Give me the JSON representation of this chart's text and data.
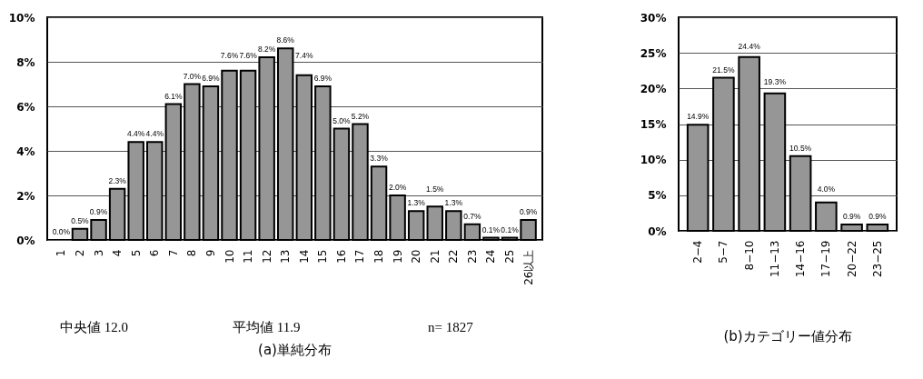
{
  "chart_data": [
    {
      "type": "bar",
      "title": "(a)単純分布",
      "categories": [
        "1",
        "2",
        "3",
        "4",
        "5",
        "6",
        "7",
        "8",
        "9",
        "10",
        "11",
        "12",
        "13",
        "14",
        "15",
        "16",
        "17",
        "18",
        "19",
        "20",
        "21",
        "22",
        "23",
        "24",
        "25",
        "26以上"
      ],
      "values": [
        0.0,
        0.5,
        0.9,
        2.3,
        4.4,
        4.4,
        6.1,
        7.0,
        6.9,
        7.6,
        7.6,
        8.2,
        8.6,
        7.4,
        6.9,
        5.0,
        5.2,
        3.3,
        2.0,
        1.3,
        1.5,
        1.3,
        0.7,
        0.1,
        0.1,
        0.9
      ],
      "value_labels": [
        "0.0%",
        "0.5%",
        "0.9%",
        "2.3%",
        "4.4%",
        "4.4%",
        "6.1%",
        "7.0%",
        "6.9%",
        "7.6%",
        "7.6%",
        "8.2%",
        "8.6%",
        "7.4%",
        "6.9%",
        "5.0%",
        "5.2%",
        "3.3%",
        "2.0%",
        "1.3%",
        "1.5%",
        "1.3%",
        "0.7%",
        "0.1%",
        "0.1%",
        "0.9%"
      ],
      "color": "#969696",
      "ylim": [
        0,
        10
      ],
      "yticks": [
        {
          "value": 0,
          "label": "0%"
        },
        {
          "value": 2,
          "label": "2%"
        },
        {
          "value": 4,
          "label": "4%"
        },
        {
          "value": 6,
          "label": "6%"
        },
        {
          "value": 8,
          "label": "8%"
        },
        {
          "value": 10,
          "label": "10%"
        }
      ],
      "grid": "y",
      "annotations": [
        "中央値 12.0",
        "平均値 11.9",
        "n= 1827"
      ]
    },
    {
      "type": "bar",
      "title": "(b)カテゴリー値分布",
      "categories": [
        "2−4",
        "5−7",
        "8−10",
        "11−13",
        "14−16",
        "17−19",
        "20−22",
        "23−25"
      ],
      "values": [
        14.9,
        21.5,
        24.4,
        19.3,
        10.5,
        4.0,
        0.9,
        0.9
      ],
      "value_labels": [
        "14.9%",
        "21.5%",
        "24.4%",
        "19.3%",
        "10.5%",
        "4.0%",
        "0.9%",
        "0.9%"
      ],
      "color": "#969696",
      "ylim": [
        0,
        30
      ],
      "yticks": [
        {
          "value": 0,
          "label": "0%"
        },
        {
          "value": 5,
          "label": "5%"
        },
        {
          "value": 10,
          "label": "10%"
        },
        {
          "value": 15,
          "label": "15%"
        },
        {
          "value": 20,
          "label": "20%"
        },
        {
          "value": 25,
          "label": "25%"
        },
        {
          "value": 30,
          "label": "30%"
        }
      ],
      "grid": "y"
    }
  ]
}
